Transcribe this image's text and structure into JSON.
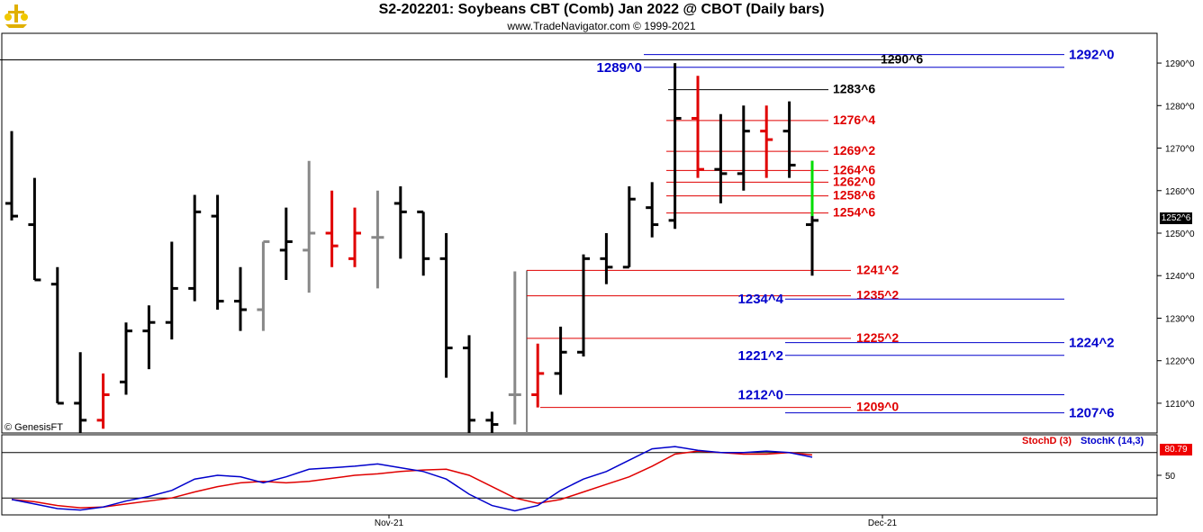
{
  "header": {
    "title": "S2-202201:  Soybeans CBT (Comb) Jan 2022 @ CBOT  (Daily bars)",
    "subtitle": "www.TradeNavigator.com © 1999-2021"
  },
  "credit": "© GenesisFT",
  "price_tag": "1252^6",
  "stoch_tag": "80.79",
  "colors": {
    "black": "#000000",
    "red": "#e00000",
    "gray": "#888888",
    "green": "#00dd00",
    "blue": "#0000cc",
    "stoch_d": "#dd0000",
    "stoch_k": "#0000cc"
  },
  "chart_data": [
    {
      "type": "ohlc",
      "title": "S2-202201:  Soybeans CBT (Comb) Jan 2022 @ CBOT  (Daily bars)",
      "ylim": [
        1203,
        1297
      ],
      "yticks": [
        {
          "v": 1210,
          "label": "1210^0"
        },
        {
          "v": 1220,
          "label": "1220^0"
        },
        {
          "v": 1230,
          "label": "1230^0"
        },
        {
          "v": 1240,
          "label": "1240^0"
        },
        {
          "v": 1250,
          "label": "1250^0"
        },
        {
          "v": 1260,
          "label": "1260^0"
        },
        {
          "v": 1270,
          "label": "1270^0"
        },
        {
          "v": 1280,
          "label": "1280^0"
        },
        {
          "v": 1290,
          "label": "1290^0"
        }
      ],
      "xlabels": [
        "Nov-21",
        "Dec-21"
      ],
      "bars": [
        {
          "o": 1257,
          "h": 1274,
          "l": 1253,
          "c": 1254,
          "col": "black"
        },
        {
          "o": 1252,
          "h": 1263,
          "l": 1239,
          "c": 1239,
          "col": "black"
        },
        {
          "o": 1238,
          "h": 1242,
          "l": 1210,
          "c": 1210,
          "col": "black"
        },
        {
          "o": 1210,
          "h": 1222,
          "l": 1203,
          "c": 1206,
          "col": "black"
        },
        {
          "o": 1206,
          "h": 1217,
          "l": 1204,
          "c": 1212,
          "col": "red"
        },
        {
          "o": 1215,
          "h": 1229,
          "l": 1212,
          "c": 1227,
          "col": "black"
        },
        {
          "o": 1227,
          "h": 1233,
          "l": 1218,
          "c": 1229,
          "col": "black"
        },
        {
          "o": 1229,
          "h": 1248,
          "l": 1225,
          "c": 1237,
          "col": "black"
        },
        {
          "o": 1237,
          "h": 1259,
          "l": 1234,
          "c": 1255,
          "col": "black"
        },
        {
          "o": 1254,
          "h": 1259,
          "l": 1232,
          "c": 1234,
          "col": "black"
        },
        {
          "o": 1234,
          "h": 1242,
          "l": 1227,
          "c": 1232,
          "col": "black"
        },
        {
          "o": 1232,
          "h": 1248,
          "l": 1227,
          "c": 1248,
          "col": "gray"
        },
        {
          "o": 1246,
          "h": 1256,
          "l": 1239,
          "c": 1248,
          "col": "black"
        },
        {
          "o": 1246,
          "h": 1267,
          "l": 1236,
          "c": 1250,
          "col": "gray"
        },
        {
          "o": 1250,
          "h": 1260,
          "l": 1242,
          "c": 1247,
          "col": "red"
        },
        {
          "o": 1244,
          "h": 1256,
          "l": 1242,
          "c": 1250,
          "col": "red"
        },
        {
          "o": 1249,
          "h": 1260,
          "l": 1237,
          "c": 1249,
          "col": "gray"
        },
        {
          "o": 1257,
          "h": 1261,
          "l": 1244,
          "c": 1255,
          "col": "black"
        },
        {
          "o": 1255,
          "h": 1255,
          "l": 1240,
          "c": 1244,
          "col": "black"
        },
        {
          "o": 1244,
          "h": 1250,
          "l": 1216,
          "c": 1223,
          "col": "black"
        },
        {
          "o": 1223,
          "h": 1226,
          "l": 1203,
          "c": 1206,
          "col": "black"
        },
        {
          "o": 1206,
          "h": 1208,
          "l": 1203,
          "c": 1205,
          "col": "black"
        },
        {
          "o": 1212,
          "h": 1241,
          "l": 1205,
          "c": 1212,
          "col": "gray"
        },
        {
          "o": 1212,
          "h": 1224,
          "l": 1209,
          "c": 1217,
          "col": "red"
        },
        {
          "o": 1217,
          "h": 1228,
          "l": 1212,
          "c": 1222,
          "col": "black"
        },
        {
          "o": 1222,
          "h": 1245,
          "l": 1221,
          "c": 1244,
          "col": "black"
        },
        {
          "o": 1244,
          "h": 1250,
          "l": 1238,
          "c": 1242,
          "col": "black"
        },
        {
          "o": 1242,
          "h": 1261,
          "l": 1242,
          "c": 1258,
          "col": "black"
        },
        {
          "o": 1256,
          "h": 1262,
          "l": 1249,
          "c": 1252,
          "col": "black"
        },
        {
          "o": 1253,
          "h": 1290,
          "l": 1251,
          "c": 1277,
          "col": "black"
        },
        {
          "o": 1277,
          "h": 1287,
          "l": 1263,
          "c": 1265,
          "col": "red"
        },
        {
          "o": 1265,
          "h": 1278,
          "l": 1257,
          "c": 1264,
          "col": "black"
        },
        {
          "o": 1264,
          "h": 1280,
          "l": 1260,
          "c": 1274,
          "col": "black"
        },
        {
          "o": 1274,
          "h": 1280,
          "l": 1263,
          "c": 1272,
          "col": "red"
        },
        {
          "o": 1274,
          "h": 1281,
          "l": 1263,
          "c": 1266,
          "col": "black"
        },
        {
          "o": 1252,
          "h": 1267,
          "l": 1240,
          "c": 1253,
          "col": "black",
          "green_from": 1254,
          "green_to": 1267
        }
      ],
      "levels": [
        {
          "value": 1290.75,
          "label": "1290^6",
          "color": "black"
        },
        {
          "value": 1283.75,
          "label": "1283^6",
          "color": "black"
        },
        {
          "value": 1276.5,
          "label": "1276^4",
          "color": "red"
        },
        {
          "value": 1269.25,
          "label": "1269^2",
          "color": "red"
        },
        {
          "value": 1264.75,
          "label": "1264^6",
          "color": "red"
        },
        {
          "value": 1262,
          "label": "1262^0",
          "color": "red"
        },
        {
          "value": 1258.75,
          "label": "1258^6",
          "color": "red"
        },
        {
          "value": 1254.75,
          "label": "1254^6",
          "color": "red"
        },
        {
          "value": 1241.25,
          "label": "1241^2",
          "color": "red"
        },
        {
          "value": 1235.25,
          "label": "1235^2",
          "color": "red"
        },
        {
          "value": 1225.25,
          "label": "1225^2",
          "color": "red"
        },
        {
          "value": 1209,
          "label": "1209^0",
          "color": "red"
        },
        {
          "value": 1292,
          "label": "1292^0",
          "color": "blue"
        },
        {
          "value": 1289,
          "label": "1289^0",
          "color": "blue"
        },
        {
          "value": 1234.5,
          "label": "1234^4",
          "color": "blue"
        },
        {
          "value": 1224.25,
          "label": "1224^2",
          "color": "blue"
        },
        {
          "value": 1221.25,
          "label": "1221^2",
          "color": "blue"
        },
        {
          "value": 1212,
          "label": "1212^0",
          "color": "blue"
        },
        {
          "value": 1207.75,
          "label": "1207^6",
          "color": "blue"
        }
      ]
    },
    {
      "type": "line",
      "title": "StochD (3)  StochK (14,3)",
      "ylim": [
        0,
        100
      ],
      "yticks": [
        {
          "v": 50,
          "label": "50"
        }
      ],
      "reference_lines": [
        80,
        20
      ],
      "series": [
        {
          "name": "StochD (3)",
          "color": "red",
          "values": [
            18,
            15,
            10,
            7,
            8,
            12,
            16,
            20,
            28,
            35,
            40,
            42,
            40,
            42,
            46,
            50,
            52,
            55,
            57,
            58,
            50,
            35,
            20,
            13,
            18,
            28,
            38,
            48,
            62,
            78,
            82,
            80,
            78,
            78,
            80,
            77
          ]
        },
        {
          "name": "StochK (14,3)",
          "color": "blue",
          "values": [
            18,
            12,
            6,
            4,
            8,
            16,
            22,
            30,
            45,
            50,
            48,
            40,
            48,
            58,
            60,
            62,
            65,
            60,
            55,
            45,
            25,
            10,
            3,
            10,
            30,
            45,
            55,
            70,
            85,
            88,
            83,
            80,
            80,
            82,
            80,
            74
          ]
        }
      ]
    }
  ]
}
